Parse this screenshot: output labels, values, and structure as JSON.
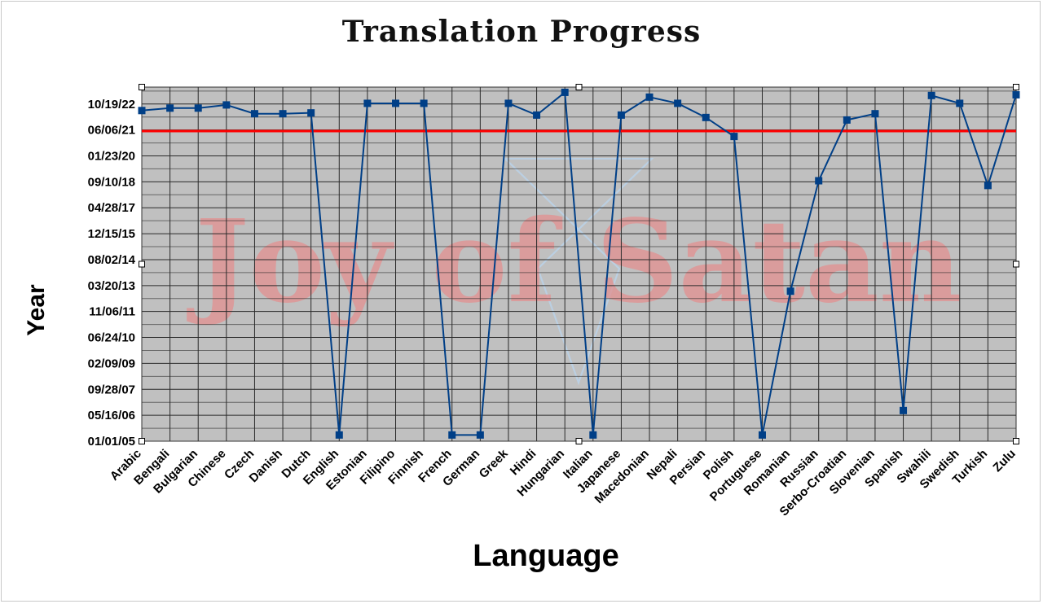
{
  "chart_data": {
    "type": "line",
    "title": "Translation Progress",
    "xlabel": "Language",
    "ylabel": "Year",
    "categories": [
      "Arabic",
      "Bengali",
      "Bulgarian",
      "Chinese",
      "Czech",
      "Danish",
      "Dutch",
      "English",
      "Estonian",
      "Filipino",
      "Finnish",
      "French",
      "German",
      "Greek",
      "Hindi",
      "Hungarian",
      "Italian",
      "Japanese",
      "Macedonian",
      "Nepali",
      "Persian",
      "Polish",
      "Portuguese",
      "Romanian",
      "Russian",
      "Serbo-Croatian",
      "Slovenian",
      "Spanish",
      "Swahili",
      "Swedish",
      "Turkish",
      "Zulu"
    ],
    "y_ticks": [
      "01/01/05",
      "05/16/06",
      "09/28/07",
      "02/09/09",
      "06/24/10",
      "11/06/11",
      "03/20/13",
      "08/02/14",
      "12/15/15",
      "04/28/17",
      "09/10/18",
      "01/23/20",
      "06/06/21",
      "10/19/22"
    ],
    "ylim": [
      "2005-01-01",
      "2023-09-10"
    ],
    "series": [
      {
        "values": [
          "2022-06-15",
          "2022-08-01",
          "2022-08-01",
          "2022-10-01",
          "2022-04-15",
          "2022-04-15",
          "2022-05-01",
          "2005-05-01",
          "2022-11-01",
          "2022-11-01",
          "2022-11-01",
          "2005-05-01",
          "2005-05-01",
          "2022-11-01",
          "2022-03-20",
          "2023-06-01",
          "2005-05-01",
          "2022-03-20",
          "2023-03-01",
          "2022-11-01",
          "2022-02-01",
          "2021-02-01",
          "2005-05-01",
          "2012-12-01",
          "2018-10-01",
          "2021-12-15",
          "2022-04-15",
          "2006-08-15",
          "2023-04-01",
          "2022-11-01",
          "2018-07-01",
          "2023-04-15"
        ],
        "color": "#003f87"
      }
    ],
    "reference_line": {
      "value": "2021-05-15",
      "color": "#ff0000"
    },
    "grid": true,
    "legend": false,
    "plot_background": "#c0c0c0",
    "watermark": "Joy of Satan",
    "watermark_color": "#ff6a6a"
  }
}
